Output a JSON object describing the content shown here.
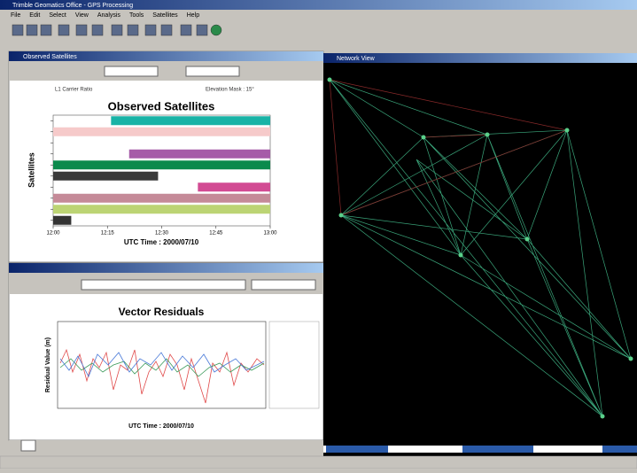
{
  "window": {
    "title": "Trimble Geomatics Office - GPS Processing"
  },
  "menu": [
    "File",
    "Edit",
    "Select",
    "View",
    "Analysis",
    "Tools",
    "Satellites",
    "Help"
  ],
  "observed_panel": {
    "title": "Observed Satellites",
    "options": [
      "L1 Carrier Ratio",
      "Elevation Mask : 15°"
    ],
    "chart": {
      "type": "bar",
      "title": "Observed Satellites",
      "y_label": "Satellites",
      "x_label": "UTC Time : 2000/07/10",
      "xlim": [
        0,
        60
      ],
      "xticks": [
        {
          "value": 0,
          "label": "12:00"
        },
        {
          "value": 15,
          "label": "12:15"
        },
        {
          "value": 30,
          "label": "12:30"
        },
        {
          "value": 45,
          "label": "12:45"
        },
        {
          "value": 60,
          "label": "13:00"
        }
      ],
      "bars": [
        {
          "start": 16,
          "end": 60,
          "color": "#19b3a6"
        },
        {
          "start": 0,
          "end": 60,
          "color": "#f6caca"
        },
        null,
        {
          "start": 21,
          "end": 60,
          "color": "#a65ca8"
        },
        {
          "start": 0,
          "end": 60,
          "color": "#0b8a4c"
        },
        {
          "start": 0,
          "end": 29,
          "color": "#3a3a3a"
        },
        {
          "start": 40,
          "end": 60,
          "color": "#d24b93"
        },
        {
          "start": 0,
          "end": 60,
          "color": "#c58a98"
        },
        {
          "start": 0,
          "end": 60,
          "color": "#bcd474"
        },
        {
          "start": 0,
          "end": 5,
          "color": "#333333"
        }
      ]
    }
  },
  "residual_panel": {
    "title": "Vector Residuals",
    "chart": {
      "title": "Vector Residuals",
      "y_label": "Residual Value (m)",
      "x_label": "UTC Time : 2000/07/10"
    }
  },
  "network_panel": {
    "title": "Network View"
  }
}
